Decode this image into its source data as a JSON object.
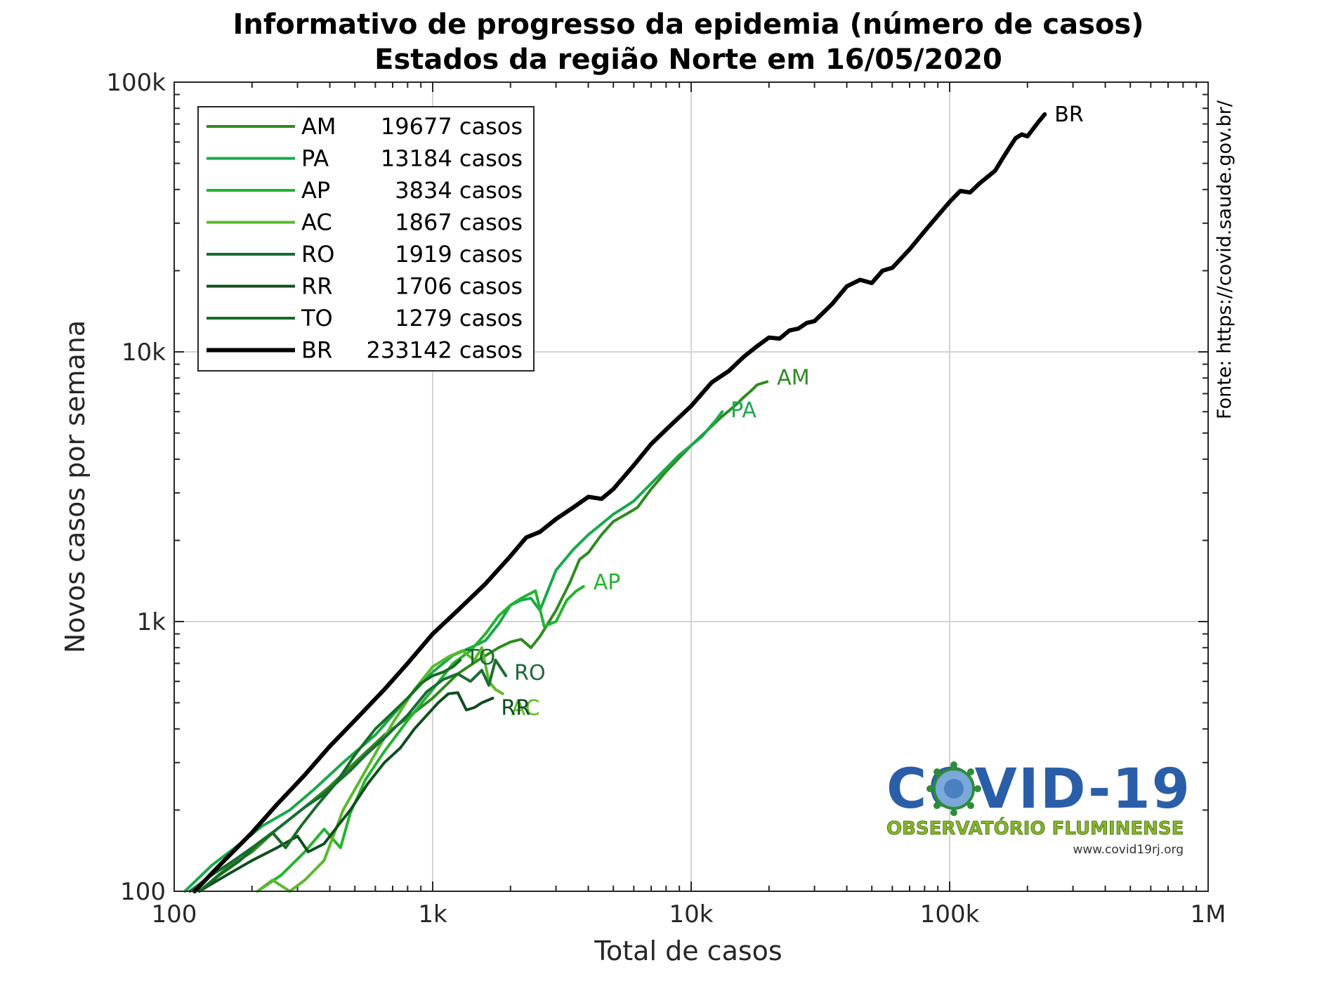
{
  "chart_data": {
    "type": "line",
    "title": "Informativo de progresso da epidemia (número de casos)",
    "subtitle": "Estados da região Norte em 16/05/2020",
    "xlabel": "Total de casos",
    "ylabel": "Novos casos por semana",
    "xscale": "log",
    "yscale": "log",
    "xlim": [
      100,
      1000000
    ],
    "ylim": [
      100,
      100000
    ],
    "x_ticks": [
      100,
      1000,
      10000,
      100000,
      1000000
    ],
    "x_tick_labels": [
      "100",
      "1k",
      "10k",
      "100k",
      "1M"
    ],
    "y_ticks": [
      100,
      1000,
      10000,
      100000
    ],
    "y_tick_labels": [
      "100",
      "1k",
      "10k",
      "100k"
    ],
    "grid": true,
    "legend_position": "top-left",
    "source_note": "Fonte: https://covid.saude.gov.br/",
    "logo": {
      "title": "COVID-19",
      "subtitle": "OBSERVATÓRIO FLUMINENSE",
      "url": "www.covid19rj.org"
    },
    "series": [
      {
        "name": "AM",
        "legend_total": "19677 casos",
        "end_label": "AM",
        "color": "#2e8b1f",
        "width": 4,
        "points": [
          [
            125,
            100
          ],
          [
            160,
            122
          ],
          [
            200,
            140
          ],
          [
            250,
            170
          ],
          [
            320,
            205
          ],
          [
            400,
            245
          ],
          [
            500,
            300
          ],
          [
            650,
            380
          ],
          [
            800,
            440
          ],
          [
            1000,
            520
          ],
          [
            1250,
            640
          ],
          [
            1500,
            720
          ],
          [
            1800,
            800
          ],
          [
            2000,
            840
          ],
          [
            2200,
            860
          ],
          [
            2400,
            800
          ],
          [
            2600,
            880
          ],
          [
            3000,
            1100
          ],
          [
            3400,
            1400
          ],
          [
            3700,
            1700
          ],
          [
            4000,
            1800
          ],
          [
            4500,
            2100
          ],
          [
            5000,
            2350
          ],
          [
            5600,
            2500
          ],
          [
            6200,
            2650
          ],
          [
            7000,
            3100
          ],
          [
            8000,
            3600
          ],
          [
            9000,
            4050
          ],
          [
            10000,
            4500
          ],
          [
            11000,
            4900
          ],
          [
            12000,
            5300
          ],
          [
            13000,
            5700
          ],
          [
            14000,
            6050
          ],
          [
            15000,
            6400
          ],
          [
            16000,
            6800
          ],
          [
            17000,
            7150
          ],
          [
            18000,
            7550
          ],
          [
            19677,
            7750
          ]
        ]
      },
      {
        "name": "PA",
        "legend_total": "13184 casos",
        "end_label": "PA",
        "color": "#19a84a",
        "width": 4,
        "points": [
          [
            110,
            100
          ],
          [
            140,
            125
          ],
          [
            180,
            150
          ],
          [
            220,
            175
          ],
          [
            280,
            200
          ],
          [
            350,
            240
          ],
          [
            450,
            300
          ],
          [
            600,
            380
          ],
          [
            800,
            520
          ],
          [
            1000,
            650
          ],
          [
            1200,
            750
          ],
          [
            1400,
            800
          ],
          [
            1600,
            850
          ],
          [
            1800,
            980
          ],
          [
            2000,
            1150
          ],
          [
            2200,
            1200
          ],
          [
            2400,
            1220
          ],
          [
            2600,
            1100
          ],
          [
            3000,
            1550
          ],
          [
            3500,
            1850
          ],
          [
            4000,
            2100
          ],
          [
            4500,
            2300
          ],
          [
            5000,
            2500
          ],
          [
            5500,
            2650
          ],
          [
            6000,
            2800
          ],
          [
            7000,
            3250
          ],
          [
            8000,
            3700
          ],
          [
            9000,
            4150
          ],
          [
            10000,
            4500
          ],
          [
            11000,
            4850
          ],
          [
            12000,
            5350
          ],
          [
            12500,
            5600
          ],
          [
            13184,
            6000
          ]
        ]
      },
      {
        "name": "AP",
        "legend_total": "3834 casos",
        "end_label": "AP",
        "color": "#22b430",
        "width": 4,
        "points": [
          [
            210,
            100
          ],
          [
            260,
            115
          ],
          [
            320,
            140
          ],
          [
            380,
            170
          ],
          [
            440,
            145
          ],
          [
            480,
            195
          ],
          [
            550,
            260
          ],
          [
            650,
            330
          ],
          [
            800,
            430
          ],
          [
            1000,
            560
          ],
          [
            1200,
            700
          ],
          [
            1400,
            780
          ],
          [
            1600,
            900
          ],
          [
            1800,
            1050
          ],
          [
            2000,
            1150
          ],
          [
            2200,
            1220
          ],
          [
            2500,
            1300
          ],
          [
            2700,
            960
          ],
          [
            3000,
            1000
          ],
          [
            3300,
            1200
          ],
          [
            3600,
            1300
          ],
          [
            3834,
            1350
          ]
        ]
      },
      {
        "name": "AC",
        "legend_total": "1867 casos",
        "end_label": "AC",
        "color": "#5cb82c",
        "width": 4,
        "points": [
          [
            210,
            100
          ],
          [
            240,
            110
          ],
          [
            280,
            100
          ],
          [
            320,
            110
          ],
          [
            380,
            130
          ],
          [
            450,
            200
          ],
          [
            550,
            280
          ],
          [
            700,
            420
          ],
          [
            850,
            560
          ],
          [
            1000,
            680
          ],
          [
            1150,
            740
          ],
          [
            1300,
            780
          ],
          [
            1450,
            720
          ],
          [
            1550,
            800
          ],
          [
            1650,
            600
          ],
          [
            1750,
            560
          ],
          [
            1867,
            540
          ]
        ]
      },
      {
        "name": "RO",
        "legend_total": "1919 casos",
        "end_label": "RO",
        "color": "#1a6b35",
        "width": 4,
        "points": [
          [
            115,
            100
          ],
          [
            140,
            115
          ],
          [
            170,
            130
          ],
          [
            210,
            150
          ],
          [
            260,
            175
          ],
          [
            320,
            205
          ],
          [
            370,
            225
          ],
          [
            420,
            250
          ],
          [
            480,
            280
          ],
          [
            550,
            320
          ],
          [
            650,
            370
          ],
          [
            800,
            450
          ],
          [
            950,
            550
          ],
          [
            1100,
            610
          ],
          [
            1250,
            640
          ],
          [
            1400,
            600
          ],
          [
            1550,
            660
          ],
          [
            1650,
            580
          ],
          [
            1750,
            720
          ],
          [
            1919,
            630
          ]
        ]
      },
      {
        "name": "RR",
        "legend_total": "1706 casos",
        "end_label": "RR",
        "color": "#0f4d1e",
        "width": 4,
        "points": [
          [
            125,
            100
          ],
          [
            160,
            115
          ],
          [
            200,
            130
          ],
          [
            250,
            145
          ],
          [
            300,
            160
          ],
          [
            330,
            140
          ],
          [
            380,
            150
          ],
          [
            430,
            175
          ],
          [
            480,
            200
          ],
          [
            560,
            250
          ],
          [
            650,
            300
          ],
          [
            750,
            340
          ],
          [
            850,
            400
          ],
          [
            950,
            450
          ],
          [
            1050,
            500
          ],
          [
            1150,
            540
          ],
          [
            1250,
            545
          ],
          [
            1350,
            470
          ],
          [
            1450,
            480
          ],
          [
            1550,
            500
          ],
          [
            1706,
            520
          ]
        ]
      },
      {
        "name": "TO",
        "legend_total": "1279 casos",
        "end_label": "TO",
        "color": "#176b25",
        "width": 4,
        "points": [
          [
            125,
            100
          ],
          [
            150,
            115
          ],
          [
            180,
            130
          ],
          [
            210,
            150
          ],
          [
            240,
            165
          ],
          [
            270,
            145
          ],
          [
            310,
            175
          ],
          [
            360,
            210
          ],
          [
            420,
            250
          ],
          [
            500,
            320
          ],
          [
            600,
            400
          ],
          [
            700,
            460
          ],
          [
            800,
            520
          ],
          [
            900,
            590
          ],
          [
            1000,
            630
          ],
          [
            1100,
            650
          ],
          [
            1200,
            680
          ],
          [
            1279,
            720
          ]
        ]
      },
      {
        "name": "BR",
        "legend_total": "233142 casos",
        "end_label": "BR",
        "color": "#000000",
        "width": 6,
        "points": [
          [
            120,
            100
          ],
          [
            150,
            125
          ],
          [
            200,
            165
          ],
          [
            250,
            210
          ],
          [
            320,
            270
          ],
          [
            400,
            345
          ],
          [
            500,
            430
          ],
          [
            650,
            560
          ],
          [
            800,
            700
          ],
          [
            1000,
            900
          ],
          [
            1250,
            1100
          ],
          [
            1600,
            1380
          ],
          [
            2000,
            1750
          ],
          [
            2300,
            2050
          ],
          [
            2600,
            2150
          ],
          [
            3000,
            2400
          ],
          [
            3500,
            2650
          ],
          [
            4000,
            2900
          ],
          [
            4500,
            2850
          ],
          [
            5000,
            3100
          ],
          [
            6000,
            3800
          ],
          [
            7000,
            4550
          ],
          [
            8000,
            5150
          ],
          [
            10000,
            6300
          ],
          [
            12000,
            7700
          ],
          [
            14000,
            8500
          ],
          [
            16000,
            9600
          ],
          [
            18000,
            10500
          ],
          [
            20000,
            11300
          ],
          [
            22000,
            11200
          ],
          [
            24000,
            12000
          ],
          [
            26000,
            12200
          ],
          [
            28000,
            12800
          ],
          [
            30000,
            13000
          ],
          [
            35000,
            15000
          ],
          [
            40000,
            17500
          ],
          [
            45000,
            18500
          ],
          [
            50000,
            18000
          ],
          [
            55000,
            20000
          ],
          [
            60000,
            20500
          ],
          [
            70000,
            24000
          ],
          [
            80000,
            28000
          ],
          [
            90000,
            32000
          ],
          [
            100000,
            36000
          ],
          [
            110000,
            39500
          ],
          [
            120000,
            39000
          ],
          [
            130000,
            42000
          ],
          [
            140000,
            44500
          ],
          [
            150000,
            47000
          ],
          [
            160000,
            52000
          ],
          [
            170000,
            57000
          ],
          [
            180000,
            62000
          ],
          [
            190000,
            64000
          ],
          [
            200000,
            63000
          ],
          [
            210000,
            67000
          ],
          [
            220000,
            71000
          ],
          [
            233142,
            76000
          ]
        ]
      }
    ]
  }
}
